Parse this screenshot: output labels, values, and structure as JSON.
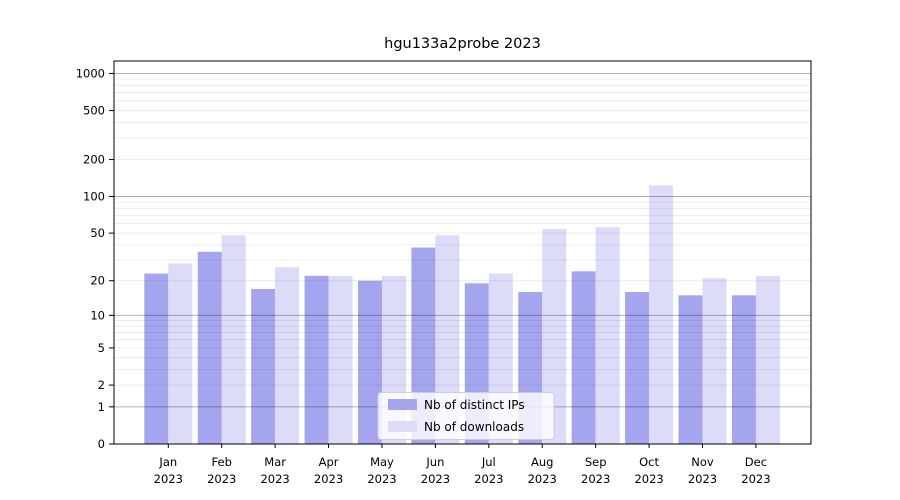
{
  "title": "hgu133a2probe 2023",
  "chart_data": {
    "type": "bar",
    "title": "hgu133a2probe 2023",
    "year": "2023",
    "categories": [
      "Jan",
      "Feb",
      "Mar",
      "Apr",
      "May",
      "Jun",
      "Jul",
      "Aug",
      "Sep",
      "Oct",
      "Nov",
      "Dec"
    ],
    "series": [
      {
        "name": "Nb of distinct IPs",
        "color": "#a5a5ef",
        "values": [
          23,
          35,
          17,
          22,
          20,
          38,
          19,
          16,
          24,
          16,
          15,
          15
        ]
      },
      {
        "name": "Nb of downloads",
        "color": "#dcdcf9",
        "values": [
          28,
          48,
          26,
          22,
          22,
          48,
          23,
          54,
          56,
          123,
          21,
          22
        ]
      }
    ],
    "yticks": [
      0,
      1,
      2,
      5,
      10,
      20,
      50,
      100,
      200,
      500,
      1000
    ],
    "yscale": "log1p",
    "ylim": [
      0,
      1260
    ],
    "grid": true,
    "legend_position": "lower center",
    "colors": {
      "plot_border": "#000000",
      "major_grid": "rgba(0,0,0,0.30)",
      "minor_grid": "rgba(0,0,0,0.075)",
      "legend_border": "#cfcfcf",
      "legend_background": "rgba(255,255,255,0.8)"
    }
  }
}
